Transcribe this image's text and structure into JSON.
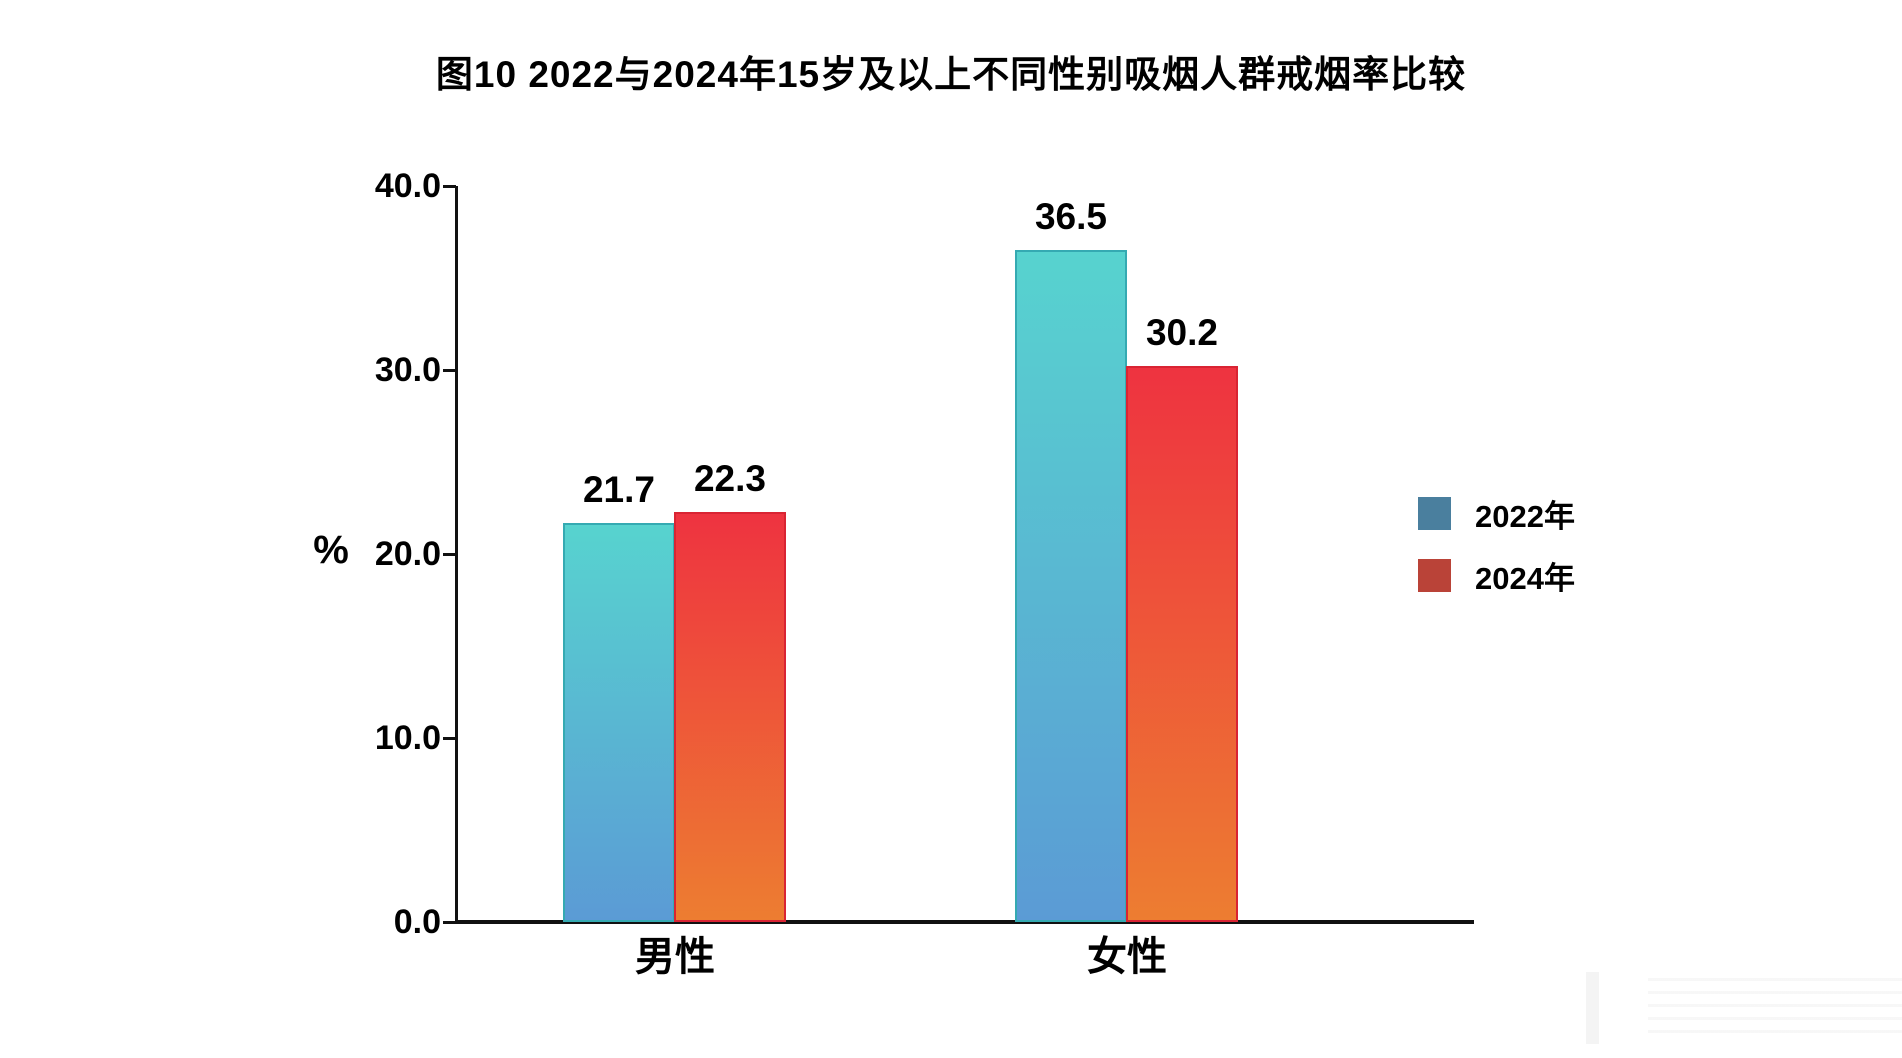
{
  "chart_data": {
    "type": "bar",
    "title": "图10 2022与2024年15岁及以上不同性别吸烟人群戒烟率比较",
    "ylabel": "%",
    "xlabel": "",
    "categories": [
      "男性",
      "女性"
    ],
    "series": [
      {
        "name": "2022年",
        "values": [
          21.7,
          36.5
        ],
        "bar_top_color": "#57d3cf",
        "bar_bottom_color": "#5b9bd5",
        "bar_border_color": "#35aab2",
        "legend_color": "#4a7f9e"
      },
      {
        "name": "2024年",
        "values": [
          22.3,
          30.2
        ],
        "bar_top_color": "#ee3340",
        "bar_bottom_color": "#ed7d31",
        "bar_border_color": "#d92433",
        "legend_color": "#ba4338"
      }
    ],
    "ylim": [
      0,
      40
    ],
    "y_ticks": [
      "40.0",
      "30.0",
      "20.0",
      "10.0",
      "0.0"
    ],
    "y_tick_values": [
      40,
      30,
      20,
      10,
      0
    ],
    "grid": false,
    "legend_position": "right",
    "axis_color": "#111111",
    "background_color": "#ffffff"
  }
}
